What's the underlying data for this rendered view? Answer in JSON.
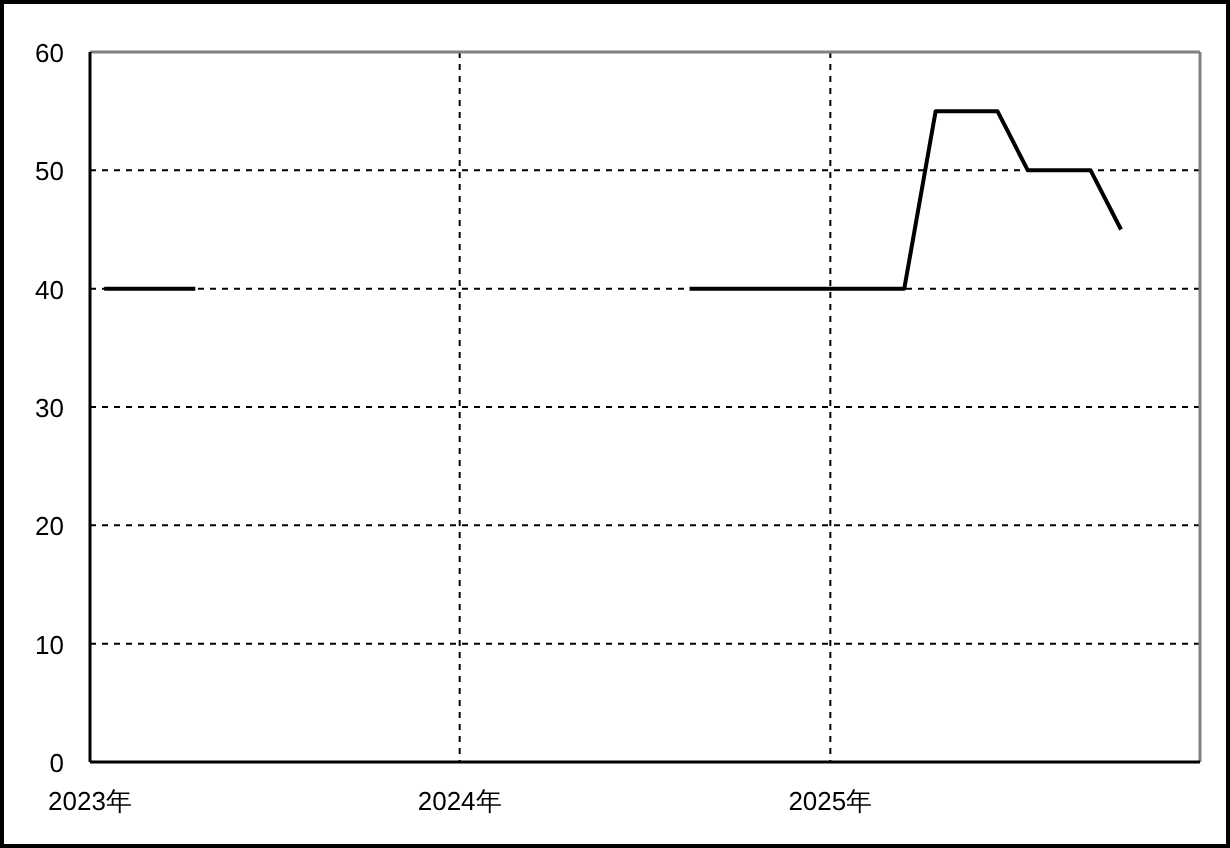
{
  "chart_data": {
    "type": "line",
    "series": [
      {
        "color": "#000000",
        "x": [
          "2023-01-15",
          "2023-02-15",
          "2023-03-15",
          "2023-04-15"
        ],
        "values": [
          40,
          40,
          40,
          40
        ]
      },
      {
        "color": "#000000",
        "x": [
          "2024-08-15",
          "2024-09-15",
          "2024-10-15",
          "2024-11-15",
          "2024-12-15",
          "2025-01-15",
          "2025-02-15",
          "2025-03-15",
          "2025-04-15",
          "2025-05-15",
          "2025-06-15",
          "2025-07-15",
          "2025-08-15",
          "2025-09-15",
          "2025-10-15"
        ],
        "values": [
          40,
          40,
          40,
          40,
          40,
          40,
          40,
          40,
          55,
          55,
          55,
          50,
          50,
          50,
          45
        ]
      }
    ],
    "line_style": "solid",
    "xlim": [
      "2023",
      "2026"
    ],
    "xticks": [
      {
        "value": "2023",
        "label": "2023年"
      },
      {
        "value": "2024",
        "label": "2024年"
      },
      {
        "value": "2025",
        "label": "2025年"
      }
    ],
    "ylim": [
      0,
      60
    ],
    "yticks": [
      0,
      10,
      20,
      30,
      40,
      50,
      60
    ],
    "grid": true
  }
}
